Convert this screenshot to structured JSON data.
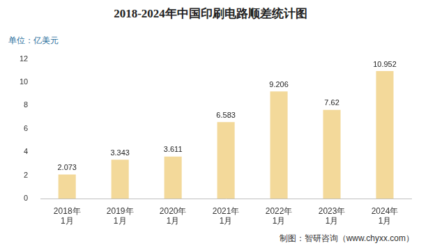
{
  "chart_data": {
    "type": "bar",
    "title": "2018-2024年中国印刷电路顺差统计图",
    "y_label": "单位：亿美元",
    "source": "制图：智研咨询（www.chyxx.com）",
    "categories": [
      "2018年1月",
      "2019年1月",
      "2020年1月",
      "2021年1月",
      "2022年1月",
      "2023年1月",
      "2024年1月"
    ],
    "values": [
      2.073,
      3.343,
      3.611,
      6.583,
      9.206,
      7.62,
      10.952
    ],
    "color": "#f3d99a",
    "ylim": [
      0,
      12
    ],
    "yticks": [
      0,
      2,
      4,
      6,
      8,
      10,
      12
    ],
    "grid": false,
    "data_labels": true
  }
}
